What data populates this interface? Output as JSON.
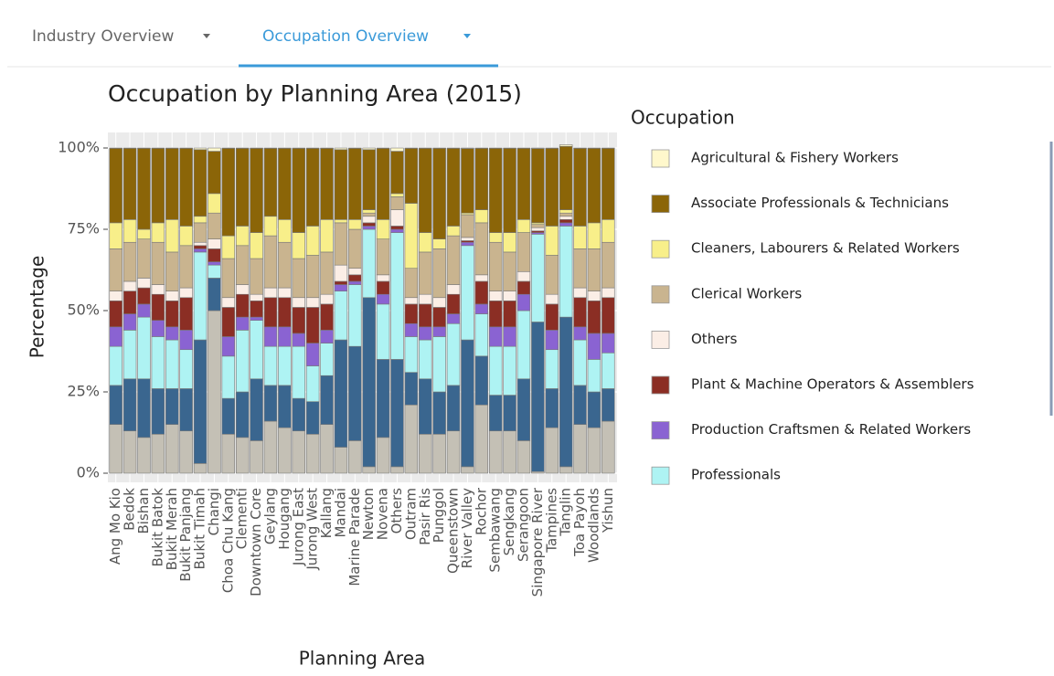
{
  "tabs": [
    "Industry Overview",
    "Occupation Overview"
  ],
  "chart_data": {
    "type": "stacked_bar",
    "title": "Occupation by Planning Area (2015)",
    "x_label": "Planning Area",
    "y_label": "Percentage",
    "legend_title": "Occupation",
    "categories": [
      "Ang Mo Kio",
      "Bedok",
      "Bishan",
      "Bukit Batok",
      "Bukit Merah",
      "Bukit Panjang",
      "Bukit Timah",
      "Changi",
      "Choa Chu Kang",
      "Clementi",
      "Downtown Core",
      "Geylang",
      "Hougang",
      "Jurong East",
      "Jurong West",
      "Kallang",
      "Mandai",
      "Marine Parade",
      "Newton",
      "Novena",
      "Others",
      "Outram",
      "Pasir Ris",
      "Punggol",
      "Queenstown",
      "River Valley",
      "Rochor",
      "Sembawang",
      "Sengkang",
      "Serangoon",
      "Singapore River",
      "Tampines",
      "Tanglin",
      "Toa Payoh",
      "Woodlands",
      "Yishun"
    ],
    "ylim": [
      0,
      100
    ],
    "yticks": [
      {
        "value": 0,
        "label": "0%"
      },
      {
        "value": 25,
        "label": "25%"
      },
      {
        "value": 50,
        "label": "50%"
      },
      {
        "value": 75,
        "label": "75%"
      },
      {
        "value": 100,
        "label": "100%"
      }
    ],
    "grid": true,
    "legend": "right",
    "series": [
      {
        "name": "Agricultural & Fishery Workers",
        "color": "#fff8cc",
        "values": [
          0.1,
          0.1,
          0.1,
          0.1,
          0.1,
          0.1,
          0.5,
          1,
          0.1,
          0.1,
          0.1,
          0.1,
          0.1,
          0.1,
          0.1,
          0.1,
          0.5,
          0.1,
          0.5,
          0.1,
          1,
          0.1,
          0.1,
          0.1,
          0.1,
          0.2,
          0.1,
          0.1,
          0.1,
          0.1,
          0.2,
          0.1,
          0.5,
          0.1,
          0.1,
          0.1
        ]
      },
      {
        "name": "Associate Professionals & Technicians",
        "color": "#8b6508",
        "values": [
          22.9,
          21.9,
          24.9,
          22.9,
          21.9,
          23.9,
          20.5,
          13,
          26.9,
          23.9,
          25.9,
          20.9,
          21.9,
          25.9,
          23.9,
          21.9,
          21.5,
          21.9,
          18.5,
          21.9,
          13,
          16.9,
          25.9,
          27.9,
          23.9,
          19.8,
          18.9,
          25.9,
          25.9,
          21.9,
          22.8,
          23.9,
          19.5,
          23.9,
          22.9,
          21.9
        ]
      },
      {
        "name": "Cleaners, Labourers & Related Workers",
        "color": "#f8ef8a",
        "values": [
          8,
          7,
          3,
          6,
          10,
          6,
          2,
          6,
          7,
          6,
          8,
          6,
          7,
          8,
          9,
          10,
          1,
          3,
          1,
          6,
          1,
          20,
          6,
          3,
          3,
          0.5,
          4,
          3,
          6,
          4,
          0.5,
          9,
          1,
          7,
          8,
          7
        ]
      },
      {
        "name": "Clerical Workers",
        "color": "#c9b48f",
        "values": [
          13,
          12,
          12,
          13,
          12,
          13,
          6,
          8,
          12,
          12,
          11,
          16,
          14,
          12,
          13,
          13,
          13,
          12,
          1,
          11,
          4,
          9,
          13,
          15,
          15,
          7,
          16,
          15,
          12,
          12,
          1,
          12,
          1,
          12,
          13,
          14
        ]
      },
      {
        "name": "Others",
        "color": "#fbeee6",
        "values": [
          3,
          3,
          3,
          3,
          3,
          3,
          1,
          3,
          3,
          3,
          2,
          3,
          3,
          3,
          3,
          3,
          5,
          2,
          2,
          2,
          5,
          2,
          3,
          3,
          3,
          1,
          2,
          3,
          3,
          3,
          1,
          3,
          1,
          3,
          3,
          3
        ]
      },
      {
        "name": "Plant & Machine Operators & Assemblers",
        "color": "#8b2e24",
        "values": [
          8,
          7,
          5,
          8,
          8,
          10,
          1,
          4,
          9,
          7,
          5,
          9,
          9,
          8,
          11,
          8,
          1,
          2,
          1,
          4,
          1,
          6,
          7,
          6,
          6,
          0.5,
          7,
          8,
          8,
          4,
          0.5,
          8,
          1,
          9,
          10,
          11
        ]
      },
      {
        "name": "Production Craftsmen & Related Workers",
        "color": "#8a63d2",
        "values": [
          6,
          5,
          4,
          5,
          4,
          6,
          1,
          1,
          6,
          4,
          1,
          6,
          6,
          4,
          7,
          4,
          2,
          1,
          1,
          3,
          1,
          4,
          4,
          3,
          3,
          1,
          3,
          6,
          6,
          5,
          0.5,
          6,
          1,
          4,
          8,
          6
        ]
      },
      {
        "name": "Professionals",
        "color": "#aef3f3",
        "values": [
          12,
          15,
          19,
          16,
          15,
          12,
          27,
          4,
          13,
          19,
          18,
          12,
          12,
          16,
          11,
          10,
          15,
          19,
          21,
          17,
          39,
          11,
          12,
          17,
          19,
          29,
          13,
          15,
          15,
          21,
          27,
          12,
          28,
          14,
          10,
          11
        ]
      },
      {
        "color": "#3a668f",
        "values": [
          12,
          16,
          18,
          14,
          11,
          13,
          38,
          10,
          11,
          14,
          19,
          11,
          13,
          10,
          10,
          15,
          33,
          29,
          52,
          24,
          33,
          10,
          17,
          13,
          14,
          39,
          15,
          11,
          11,
          19,
          46,
          12,
          46,
          12,
          11,
          10
        ]
      },
      {
        "color": "#c4c0b5",
        "values": [
          15,
          13,
          11,
          12,
          15,
          13,
          3,
          50,
          12,
          11,
          10,
          16,
          14,
          13,
          12,
          15,
          8,
          10,
          2,
          11,
          2,
          21,
          12,
          12,
          13,
          2,
          21,
          13,
          13,
          10,
          0.5,
          14,
          2,
          15,
          14,
          16
        ]
      }
    ]
  }
}
